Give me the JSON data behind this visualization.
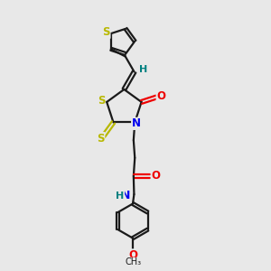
{
  "bg_color": "#e8e8e8",
  "bond_color": "#1a1a1a",
  "S_color": "#b8b800",
  "N_color": "#0000ee",
  "O_color": "#ee0000",
  "H_color": "#008080",
  "lw": 1.6,
  "fs": 8.5,
  "fig_w": 3.0,
  "fig_h": 3.0,
  "dpi": 100,
  "xlim": [
    2.5,
    8.5
  ],
  "ylim": [
    0.0,
    10.5
  ]
}
